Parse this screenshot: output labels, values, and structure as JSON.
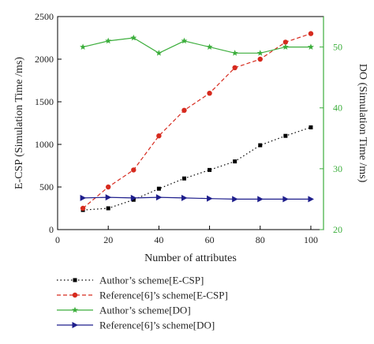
{
  "chart_data": {
    "type": "line",
    "x": [
      10,
      20,
      30,
      40,
      50,
      60,
      70,
      80,
      90,
      100
    ],
    "xlabel": "Number of attributes",
    "xlim": [
      0,
      105
    ],
    "xticks": [
      "0",
      "20",
      "40",
      "60",
      "80",
      "100"
    ],
    "ylabel_left": "E-CSP (Simulation Time /ms)",
    "ylim_left": [
      0,
      2500
    ],
    "yticks_left": [
      "0",
      "500",
      "1000",
      "1500",
      "2000",
      "2500"
    ],
    "ylabel_right": "DO (Simulation Time /ms)",
    "ylim_right": [
      20,
      55
    ],
    "yticks_right": [
      "20",
      "30",
      "40",
      "50"
    ],
    "right_axis_color": "#3cae3c",
    "grid": false,
    "legend_placement": "below",
    "series": [
      {
        "name": "Author’s scheme[E-CSP]",
        "axis": "left",
        "color": "#000000",
        "marker": "square",
        "line": "dotted",
        "values": [
          230,
          250,
          350,
          480,
          600,
          700,
          800,
          990,
          1100,
          1200
        ]
      },
      {
        "name": "Reference[6]’s scheme[E-CSP]",
        "axis": "left",
        "color": "#d62a1e",
        "marker": "circle",
        "line": "dashed",
        "values": [
          250,
          500,
          700,
          1100,
          1400,
          1600,
          1900,
          2000,
          2200,
          2300
        ]
      },
      {
        "name": "Author’s scheme[DO]",
        "axis": "right",
        "color": "#3cae3c",
        "marker": "star",
        "line": "solid",
        "values": [
          50,
          51,
          51.5,
          49,
          51,
          50,
          49,
          49,
          50,
          50
        ]
      },
      {
        "name": "Reference[6]’s scheme[DO]",
        "axis": "right",
        "color": "#1e1e8c",
        "marker": "triangle-right",
        "line": "solid",
        "values": [
          25.2,
          25.3,
          25.2,
          25.3,
          25.2,
          25.1,
          25,
          25,
          25,
          25
        ]
      }
    ]
  }
}
